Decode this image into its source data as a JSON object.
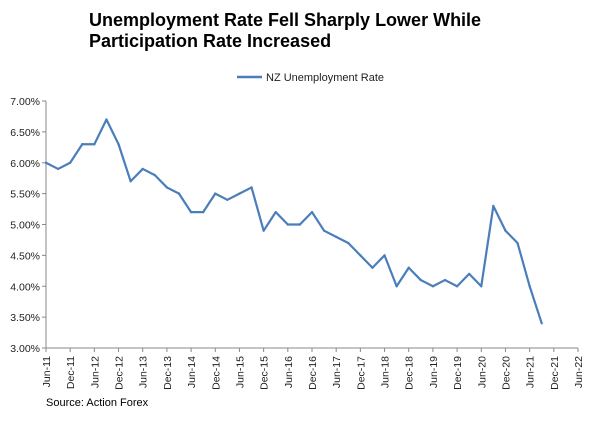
{
  "chart_data": {
    "type": "line",
    "title_line1": "Unemployment Rate Fell Sharply Lower While",
    "title_line2": "Participation Rate Increased",
    "source": "Source: Action Forex",
    "xlabel": "",
    "ylabel": "",
    "ylim": [
      3.0,
      7.0
    ],
    "y_ticks": [
      "3.00%",
      "3.50%",
      "4.00%",
      "4.50%",
      "5.00%",
      "5.50%",
      "6.00%",
      "6.50%",
      "7.00%"
    ],
    "x_ticks": [
      "Jun-11",
      "Dec-11",
      "Jun-12",
      "Dec-12",
      "Jun-13",
      "Dec-13",
      "Jun-14",
      "Dec-14",
      "Jun-15",
      "Dec-15",
      "Jun-16",
      "Dec-16",
      "Jun-17",
      "Dec-17",
      "Jun-18",
      "Dec-18",
      "Jun-19",
      "Dec-19",
      "Jun-20",
      "Dec-20",
      "Jun-21",
      "Dec-21",
      "Jun-22"
    ],
    "grid": false,
    "legend_position": "top-center",
    "color": "#4a7ebb",
    "series": [
      {
        "name": "NZ Unemployment Rate",
        "values": [
          6.0,
          5.9,
          6.0,
          6.3,
          6.3,
          6.7,
          6.3,
          5.7,
          5.9,
          5.8,
          5.6,
          5.5,
          5.2,
          5.2,
          5.5,
          5.4,
          5.5,
          5.6,
          4.9,
          5.2,
          5.0,
          5.0,
          5.2,
          4.9,
          4.8,
          4.7,
          4.5,
          4.3,
          4.5,
          4.0,
          4.3,
          4.1,
          4.0,
          4.1,
          4.0,
          4.2,
          4.0,
          5.3,
          4.9,
          4.7,
          4.0,
          3.4
        ]
      }
    ]
  }
}
